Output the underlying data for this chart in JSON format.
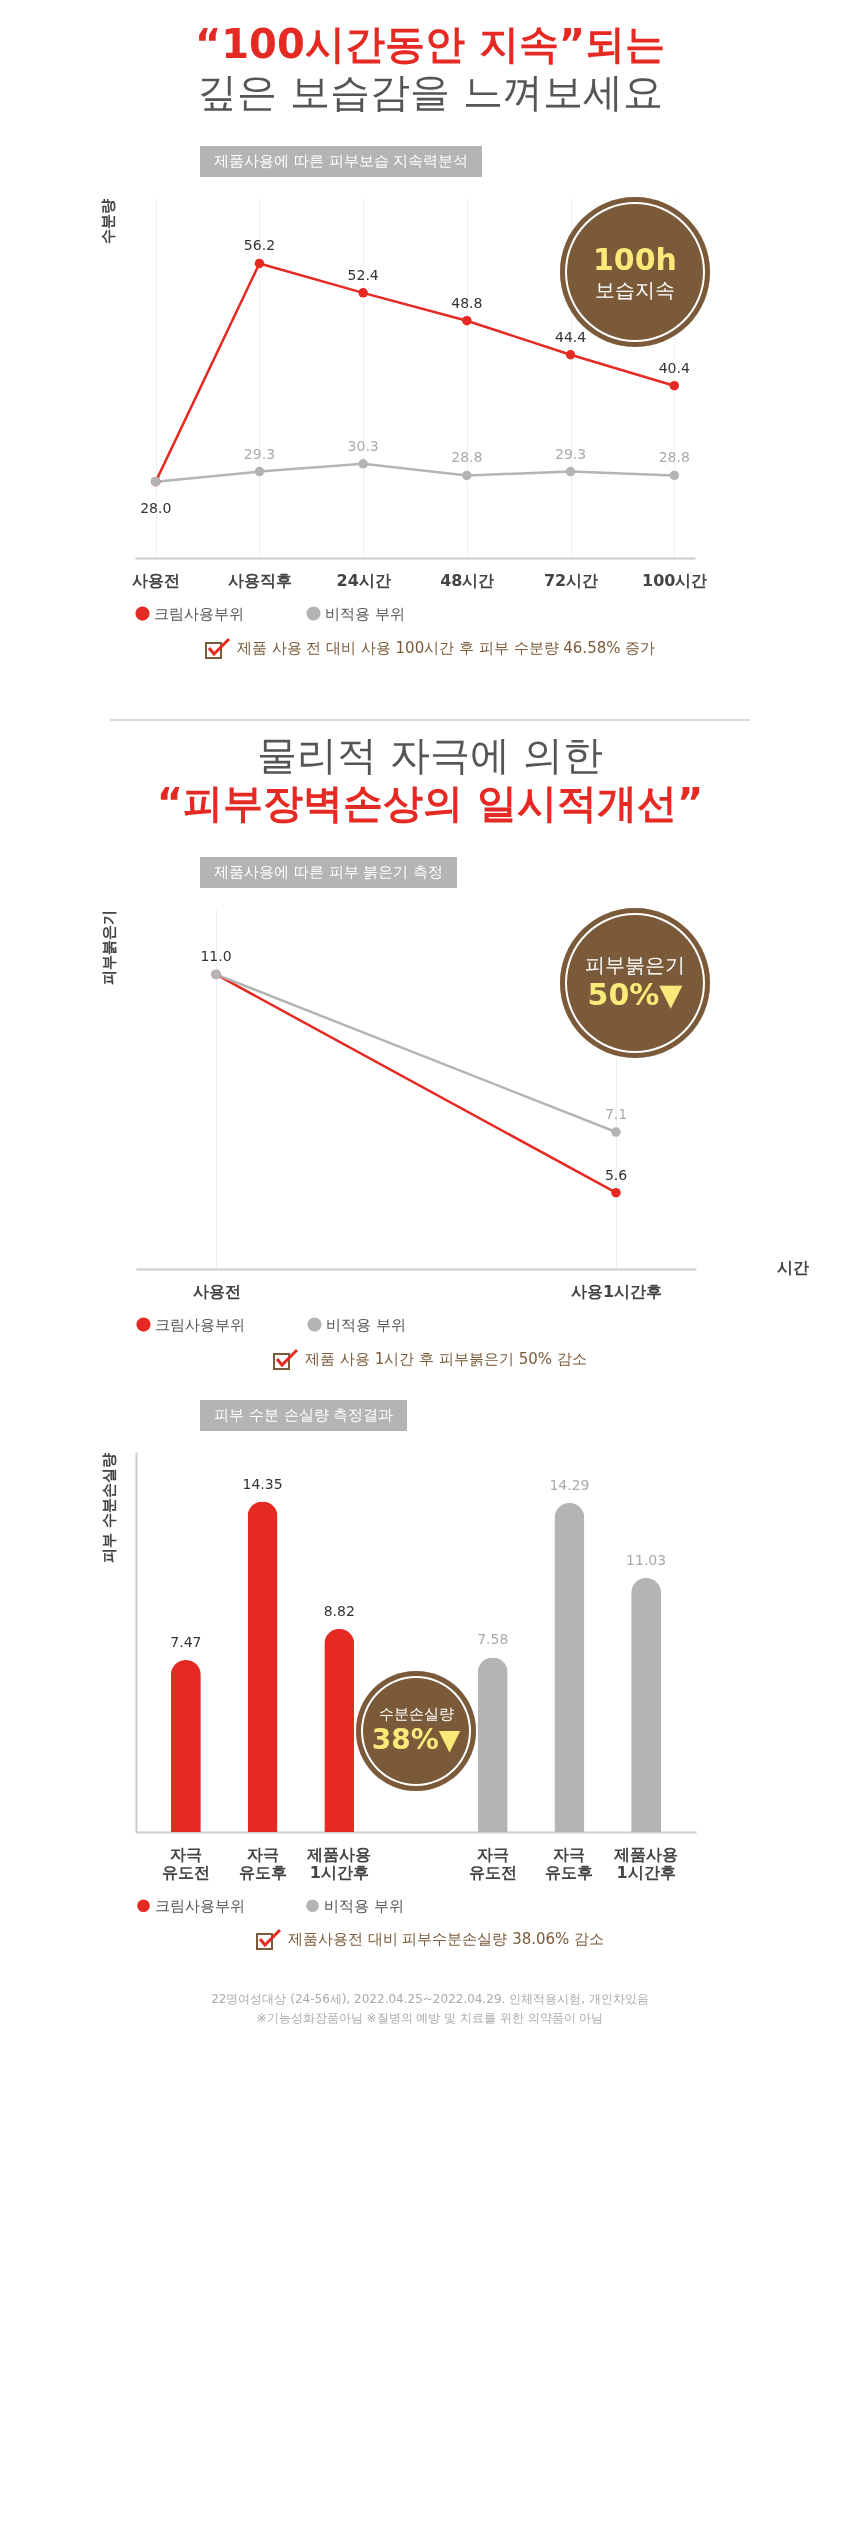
{
  "chart_data": [
    {
      "type": "line",
      "title": "“100시간동안 지속”되는\n깊은 보습감을 느껴보세요",
      "subtitle": "제품사용에 따른 피부보습 지속력분석",
      "ylabel": "수분량",
      "categories": [
        "사용전",
        "사용직후",
        "24시간",
        "48시간",
        "72시간",
        "100시간"
      ],
      "series": [
        {
          "name": "크림사용부위",
          "color": "#e52a24",
          "values": [
            28.0,
            56.2,
            52.4,
            48.8,
            44.4,
            40.4
          ],
          "value_labels": [
            "28.0",
            "56.2",
            "52.4",
            "48.8",
            "44.4",
            "40.4"
          ]
        },
        {
          "name": "비적용 부위",
          "color": "#b4b4b4",
          "values": [
            28.0,
            29.3,
            30.3,
            28.8,
            29.3,
            28.8
          ],
          "value_labels": [
            null,
            "29.3",
            "30.3",
            "28.8",
            "29.3",
            "28.8"
          ]
        }
      ],
      "annotations": [
        "100h\n보습지속",
        "제품 사용 전 대비 사용 100시간 후 피부 수분량 46.58% 증가"
      ],
      "marker": "circle",
      "line_style": "solid",
      "grid": "x",
      "legend": "bottom",
      "tick_labels": "x"
    },
    {
      "type": "line",
      "title": "물리적 자극에 의한\n“피부장벽손상의 일시적개선”",
      "subtitle": "제품사용에 따른 피부 붉은기 측정",
      "ylabel": "피부붉은기",
      "xlabel": "시간",
      "categories": [
        "사용전",
        "사용1시간후"
      ],
      "series": [
        {
          "name": "크림사용부위",
          "color": "#e52a24",
          "values": [
            11.0,
            5.6
          ],
          "value_labels": [
            "11.0",
            "5.6"
          ]
        },
        {
          "name": "비적용 부위",
          "color": "#b4b4b4",
          "values": [
            11.0,
            7.1
          ],
          "value_labels": [
            null,
            "7.1"
          ]
        }
      ],
      "annotations": [
        "피부붉은기\n50%▼",
        "제품 사용 1시간 후 피부붉은기 50% 감소"
      ],
      "marker": "circle",
      "line_style": "solid",
      "grid": "x",
      "legend": "bottom",
      "tick_labels": "x"
    },
    {
      "type": "bar",
      "subtitle": "피부 수분 손실량 측정결과",
      "ylabel": "피부 수분손실량",
      "categories": [
        "자극\n유도전",
        "자극\n유도후",
        "제품사용\n1시간후",
        null,
        "자극\n유도전",
        "자극\n유도후",
        "제품사용\n1시간후"
      ],
      "series": [
        {
          "name": "크림사용부위",
          "color": "#e52a24",
          "values": [
            7.47,
            14.35,
            8.82,
            null,
            null,
            null,
            null
          ]
        },
        {
          "name": "비적용 부위",
          "color": "#b4b4b4",
          "values": [
            null,
            null,
            null,
            null,
            7.58,
            14.29,
            11.03
          ]
        }
      ],
      "data_labels": true,
      "annotations": [
        "수분손실량\n38%▼",
        "제품사용전 대비 피부수분손실량 38.06% 감소",
        "22명여성대상 (24-56세), 2022.04.25~2022.04.29. 인체적용시험, 개인차있음",
        "※기능성화장품아님 ※질병의 예방 및 치료를 위한 의약품이 아님"
      ],
      "legend": "bottom",
      "tick_labels": "x"
    }
  ]
}
